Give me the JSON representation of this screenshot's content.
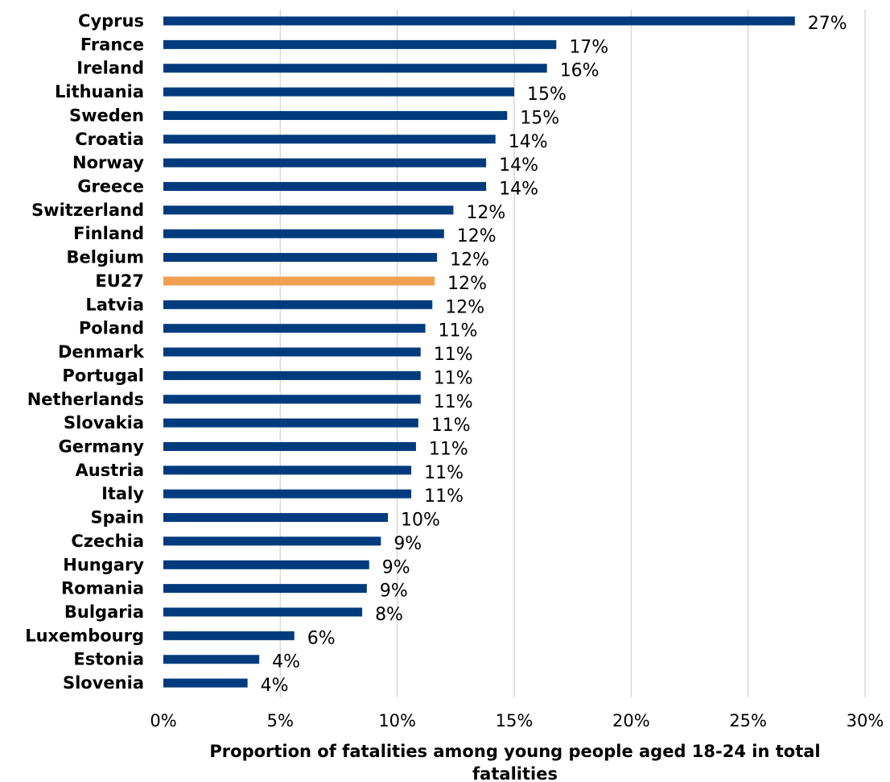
{
  "chart_data": {
    "type": "bar",
    "orientation": "horizontal",
    "categories": [
      "Cyprus",
      "France",
      "Ireland",
      "Lithuania",
      "Sweden",
      "Croatia",
      "Norway",
      "Greece",
      "Switzerland",
      "Finland",
      "Belgium",
      "EU27",
      "Latvia",
      "Poland",
      "Denmark",
      "Portugal",
      "Netherlands",
      "Slovakia",
      "Germany",
      "Austria",
      "Italy",
      "Spain",
      "Czechia",
      "Hungary",
      "Romania",
      "Bulgaria",
      "Luxembourg",
      "Estonia",
      "Slovenia"
    ],
    "values": [
      27.0,
      16.8,
      16.4,
      15.0,
      14.7,
      14.2,
      13.8,
      13.8,
      12.4,
      12.0,
      11.7,
      11.6,
      11.5,
      11.2,
      11.0,
      11.0,
      11.0,
      10.9,
      10.8,
      10.6,
      10.6,
      9.6,
      9.3,
      8.8,
      8.7,
      8.5,
      5.6,
      4.1,
      3.6
    ],
    "data_labels": [
      "27%",
      "17%",
      "16%",
      "15%",
      "15%",
      "14%",
      "14%",
      "14%",
      "12%",
      "12%",
      "12%",
      "12%",
      "12%",
      "11%",
      "11%",
      "11%",
      "11%",
      "11%",
      "11%",
      "11%",
      "11%",
      "10%",
      "9%",
      "9%",
      "9%",
      "8%",
      "6%",
      "4%",
      "4%"
    ],
    "highlight_category": "EU27",
    "colors": {
      "bar": "#003b7e",
      "highlight": "#f0a050",
      "grid": "#d9d9d9"
    },
    "xlim": [
      0,
      30
    ],
    "xticks": [
      0,
      5,
      10,
      15,
      20,
      25,
      30
    ],
    "xtick_labels": [
      "0%",
      "5%",
      "10%",
      "15%",
      "20%",
      "25%",
      "30%"
    ],
    "xlabel": "Proportion of fatalities among young people aged 18-24 in total fatalities",
    "xlabel_lines": [
      "Proportion of fatalities among young people aged 18-24 in total",
      "fatalities"
    ],
    "grid": "vertical",
    "legend": "none"
  }
}
